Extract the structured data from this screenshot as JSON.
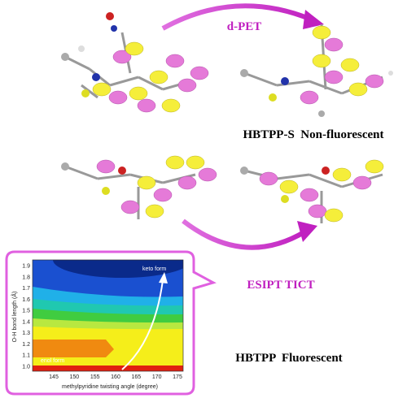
{
  "top_arrow_label": "d-PET",
  "top_caption": "HBTPP-S  Non-fluorescent",
  "bottom_arrow_label": "ESIPT TICT",
  "bottom_caption": "HBTPP  Fluorescent",
  "inset": {
    "y_label": "O-H bond length (Å)",
    "x_label": "methylpyridine twisting angle (degree)",
    "yticks": [
      "1.0",
      "1.1",
      "1.2",
      "1.3",
      "1.4",
      "1.5",
      "1.6",
      "1.7",
      "1.8",
      "1.9"
    ],
    "xticks": [
      "145",
      "150",
      "155",
      "160",
      "165",
      "170",
      "175"
    ],
    "annotations": [
      "keto form",
      "enol form"
    ]
  }
}
